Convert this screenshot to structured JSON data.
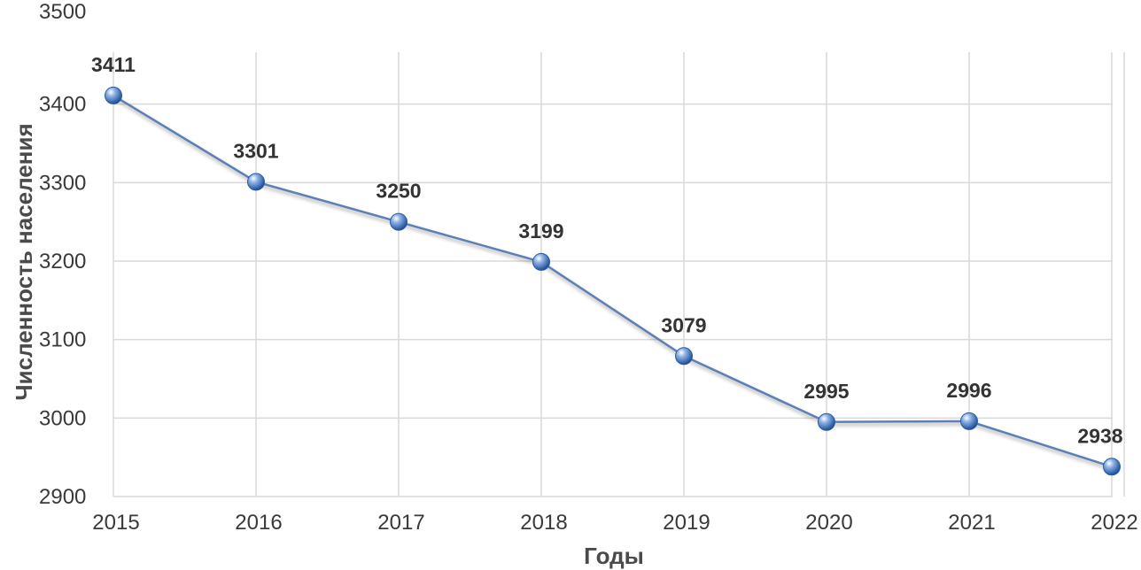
{
  "chart_data": {
    "type": "line",
    "xlabel": "Годы",
    "ylabel": "Численность населения",
    "x": [
      "2015",
      "2016",
      "2017",
      "2018",
      "2019",
      "2020",
      "2021",
      "2022"
    ],
    "series": [
      {
        "values": [
          3411,
          3301,
          3250,
          3199,
          3079,
          2995,
          2996,
          2938
        ],
        "color": "#5b7fb5"
      }
    ],
    "ylim": [
      2900,
      3500
    ],
    "yticks": [
      "2900",
      "3000",
      "3100",
      "3200",
      "3300",
      "3400",
      "3500"
    ],
    "grid": true,
    "data_labels": [
      "3411",
      "3301",
      "3250",
      "3199",
      "3079",
      "2995",
      "2996",
      "2938"
    ],
    "marker_color": "#3c6ab7",
    "line_color": "#5b7fb5",
    "grid_color": "#d9d9d9"
  }
}
